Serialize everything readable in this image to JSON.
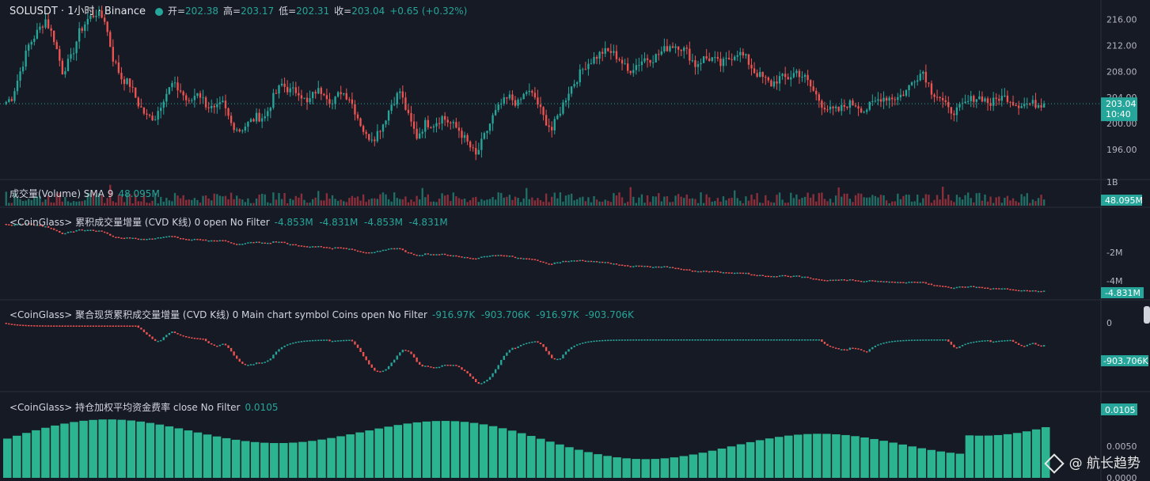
{
  "header": {
    "symbol": "SOLUSDT · 1小时 · Binance",
    "open_label": "开=",
    "open": "202.38",
    "high_label": "高=",
    "high": "203.17",
    "low_label": "低=",
    "low": "202.31",
    "close_label": "收=",
    "close": "203.04",
    "change": "+0.65 (+0.32%)"
  },
  "volume": {
    "label": "成交量(Volume) SMA 9",
    "value": "48.095M",
    "axis_top": "1B",
    "badge": "48.095M"
  },
  "cvd1": {
    "label": "<CoinGlass> 累积成交量增量  (CVD K线) 0 open No Filter",
    "values": "-4.853M  -4.831M  -4.853M  -4.831M",
    "badge": "-4.831M",
    "ticks": [
      "-2M",
      "-4M"
    ]
  },
  "cvd2": {
    "label": "<CoinGlass> 聚合现货累积成交量增量 (CVD K线) 0 Main chart symbol Coins open No Filter",
    "values": "-916.97K  -903.706K  -916.97K  -903.706K",
    "badge": "-903.706K",
    "ticks": [
      "0"
    ]
  },
  "funding": {
    "label": "<CoinGlass> 持仓加权平均资金费率 close No Filter",
    "value": "0.0105",
    "badge": "0.0105",
    "ticks": [
      "0.0050",
      "0.0000"
    ]
  },
  "price_axis": {
    "ticks": [
      "216.00",
      "212.00",
      "208.00",
      "204.00",
      "200.00",
      "196.00"
    ],
    "badge_price": "203.04",
    "badge_time": "10:40"
  },
  "watermark": "@ 航长趋势",
  "colors": {
    "bg": "#161a25",
    "up": "#26a69a",
    "down": "#ef5350",
    "up_vol": "#1f6f66",
    "down_vol": "#8c2f3a",
    "grid": "#2a2e39"
  },
  "chart_data": {
    "type": "candlestick",
    "interval": "1h",
    "price_ylim": [
      192,
      218
    ],
    "close_path": [
      203,
      204,
      208,
      212,
      214,
      216,
      213,
      208,
      210,
      214,
      216,
      217,
      216,
      210,
      207,
      206,
      203,
      201,
      201,
      204,
      206,
      205,
      203,
      205,
      203,
      202,
      203,
      200,
      199,
      200,
      201,
      201,
      204,
      206,
      205,
      205,
      203,
      205,
      205,
      203,
      205,
      204,
      201,
      198,
      198,
      200,
      203,
      205,
      201,
      198,
      200,
      200,
      201,
      200,
      199,
      197,
      195,
      198,
      201,
      203,
      204,
      203,
      205,
      204,
      201,
      199,
      202,
      205,
      207,
      209,
      210,
      211,
      211,
      210,
      208,
      209,
      210,
      210,
      211,
      212,
      212,
      211,
      209,
      210,
      210,
      209,
      210,
      211,
      210,
      208,
      207,
      206,
      207,
      207,
      208,
      207,
      205,
      203,
      202,
      202,
      203,
      203,
      202,
      203,
      204,
      204,
      204,
      205,
      207,
      208,
      205,
      204,
      202,
      202,
      203,
      204,
      204,
      203,
      204,
      204,
      203,
      203,
      203,
      203.04
    ],
    "volume_sma": "48.095M",
    "cvd_futures_final": "-4.831M",
    "cvd_spot_final": "-903.706K",
    "funding_rate_final": 0.0105
  }
}
